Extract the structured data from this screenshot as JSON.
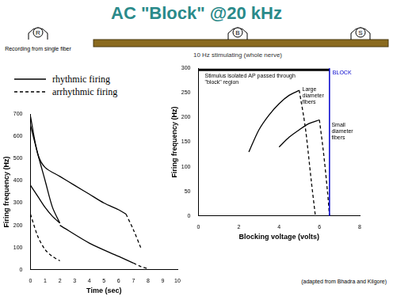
{
  "title": "AC \"Block\" @20 kHz",
  "diagram": {
    "electrodes": [
      "R",
      "B",
      "S"
    ],
    "recording_label": "Recording from single fiber",
    "nerve_label": "10 Hz stimulating (whole nerve)"
  },
  "footnote": "(adapted from Bhadra and Kilgore)",
  "chart_data": [
    {
      "type": "line",
      "x_label": "Time (sec)",
      "y_label": "Firing frequency (Hz)",
      "xlim": [
        0,
        10
      ],
      "xticks": [
        0,
        1,
        2,
        3,
        4,
        5,
        6,
        7,
        8,
        9,
        10
      ],
      "ylim": [
        0,
        700
      ],
      "yticks": [
        0,
        100,
        200,
        300,
        400,
        500,
        600,
        700
      ],
      "legend": "top-left",
      "series": [
        {
          "name": "rhythmic firing",
          "color": "#000000",
          "line_style": "solid",
          "x": [
            0,
            0.5,
            1,
            2,
            3,
            4,
            5,
            6,
            6.5
          ],
          "values": [
            690,
            520,
            460,
            420,
            380,
            340,
            300,
            270,
            250
          ]
        },
        {
          "name": "arrhythmic firing",
          "color": "#000000",
          "line_style": "dashed",
          "x": [
            6.5,
            7,
            7.5
          ],
          "values": [
            250,
            180,
            100
          ]
        },
        {
          "name": "rhythmic firing",
          "color": "#000000",
          "line_style": "solid",
          "x": [
            0,
            0.5,
            1,
            1.5,
            2
          ],
          "values": [
            650,
            520,
            400,
            280,
            210
          ]
        },
        {
          "name": "rhythmic firing",
          "color": "#000000",
          "line_style": "solid",
          "x": [
            0,
            0.5,
            1,
            1.5,
            2
          ],
          "values": [
            380,
            330,
            280,
            240,
            210
          ]
        },
        {
          "name": "arrhythmic firing",
          "color": "#000000",
          "line_style": "dashed",
          "x": [
            0,
            0.5,
            1,
            1.5,
            2
          ],
          "values": [
            250,
            150,
            90,
            60,
            40
          ]
        },
        {
          "name": "rhythmic firing",
          "color": "#000000",
          "line_style": "solid",
          "x": [
            2,
            4,
            6,
            7
          ],
          "values": [
            200,
            120,
            60,
            30
          ]
        },
        {
          "name": "arrhythmic firing",
          "color": "#000000",
          "line_style": "dashed",
          "x": [
            7,
            7.5,
            8
          ],
          "values": [
            30,
            15,
            5
          ]
        }
      ]
    },
    {
      "type": "line",
      "x_label": "Blocking voltage (volts)",
      "y_label": "Firing frequency (Hz)",
      "xlim": [
        0,
        8
      ],
      "xticks": [
        0,
        2,
        4,
        6,
        8
      ],
      "ylim": [
        0,
        300
      ],
      "yticks": [
        0,
        50,
        100,
        150,
        200,
        250,
        300
      ],
      "series": [
        {
          "color": "#000000",
          "line_style": "solid",
          "x": [
            2.5,
            3,
            3.5,
            4,
            4.5,
            5
          ],
          "values": [
            130,
            175,
            205,
            228,
            245,
            255
          ]
        },
        {
          "color": "#000000",
          "line_style": "dashed",
          "x": [
            5,
            5.3,
            5.6,
            5.8
          ],
          "values": [
            255,
            180,
            70,
            0
          ]
        },
        {
          "color": "#000000",
          "line_style": "solid",
          "x": [
            4,
            4.5,
            5,
            5.5,
            6
          ],
          "values": [
            140,
            160,
            175,
            188,
            195
          ]
        },
        {
          "color": "#000000",
          "line_style": "dashed",
          "x": [
            6,
            6.2,
            6.4,
            6.5
          ],
          "values": [
            195,
            130,
            50,
            0
          ]
        }
      ],
      "annotations": [
        {
          "text": "Stimulus isolated AP passed through \"block\" region",
          "x": [
            0,
            6.5
          ],
          "y": 300,
          "color": "#000000"
        },
        {
          "text": "BLOCK",
          "x": 6.5,
          "y": 300,
          "color": "#0000cc"
        },
        {
          "text": "Large diameter fibers",
          "x": 5.15,
          "y": 262,
          "color": "#000000"
        },
        {
          "text": "Small diameter fibers",
          "x": 6.6,
          "y": 190,
          "color": "#000000"
        }
      ]
    }
  ]
}
